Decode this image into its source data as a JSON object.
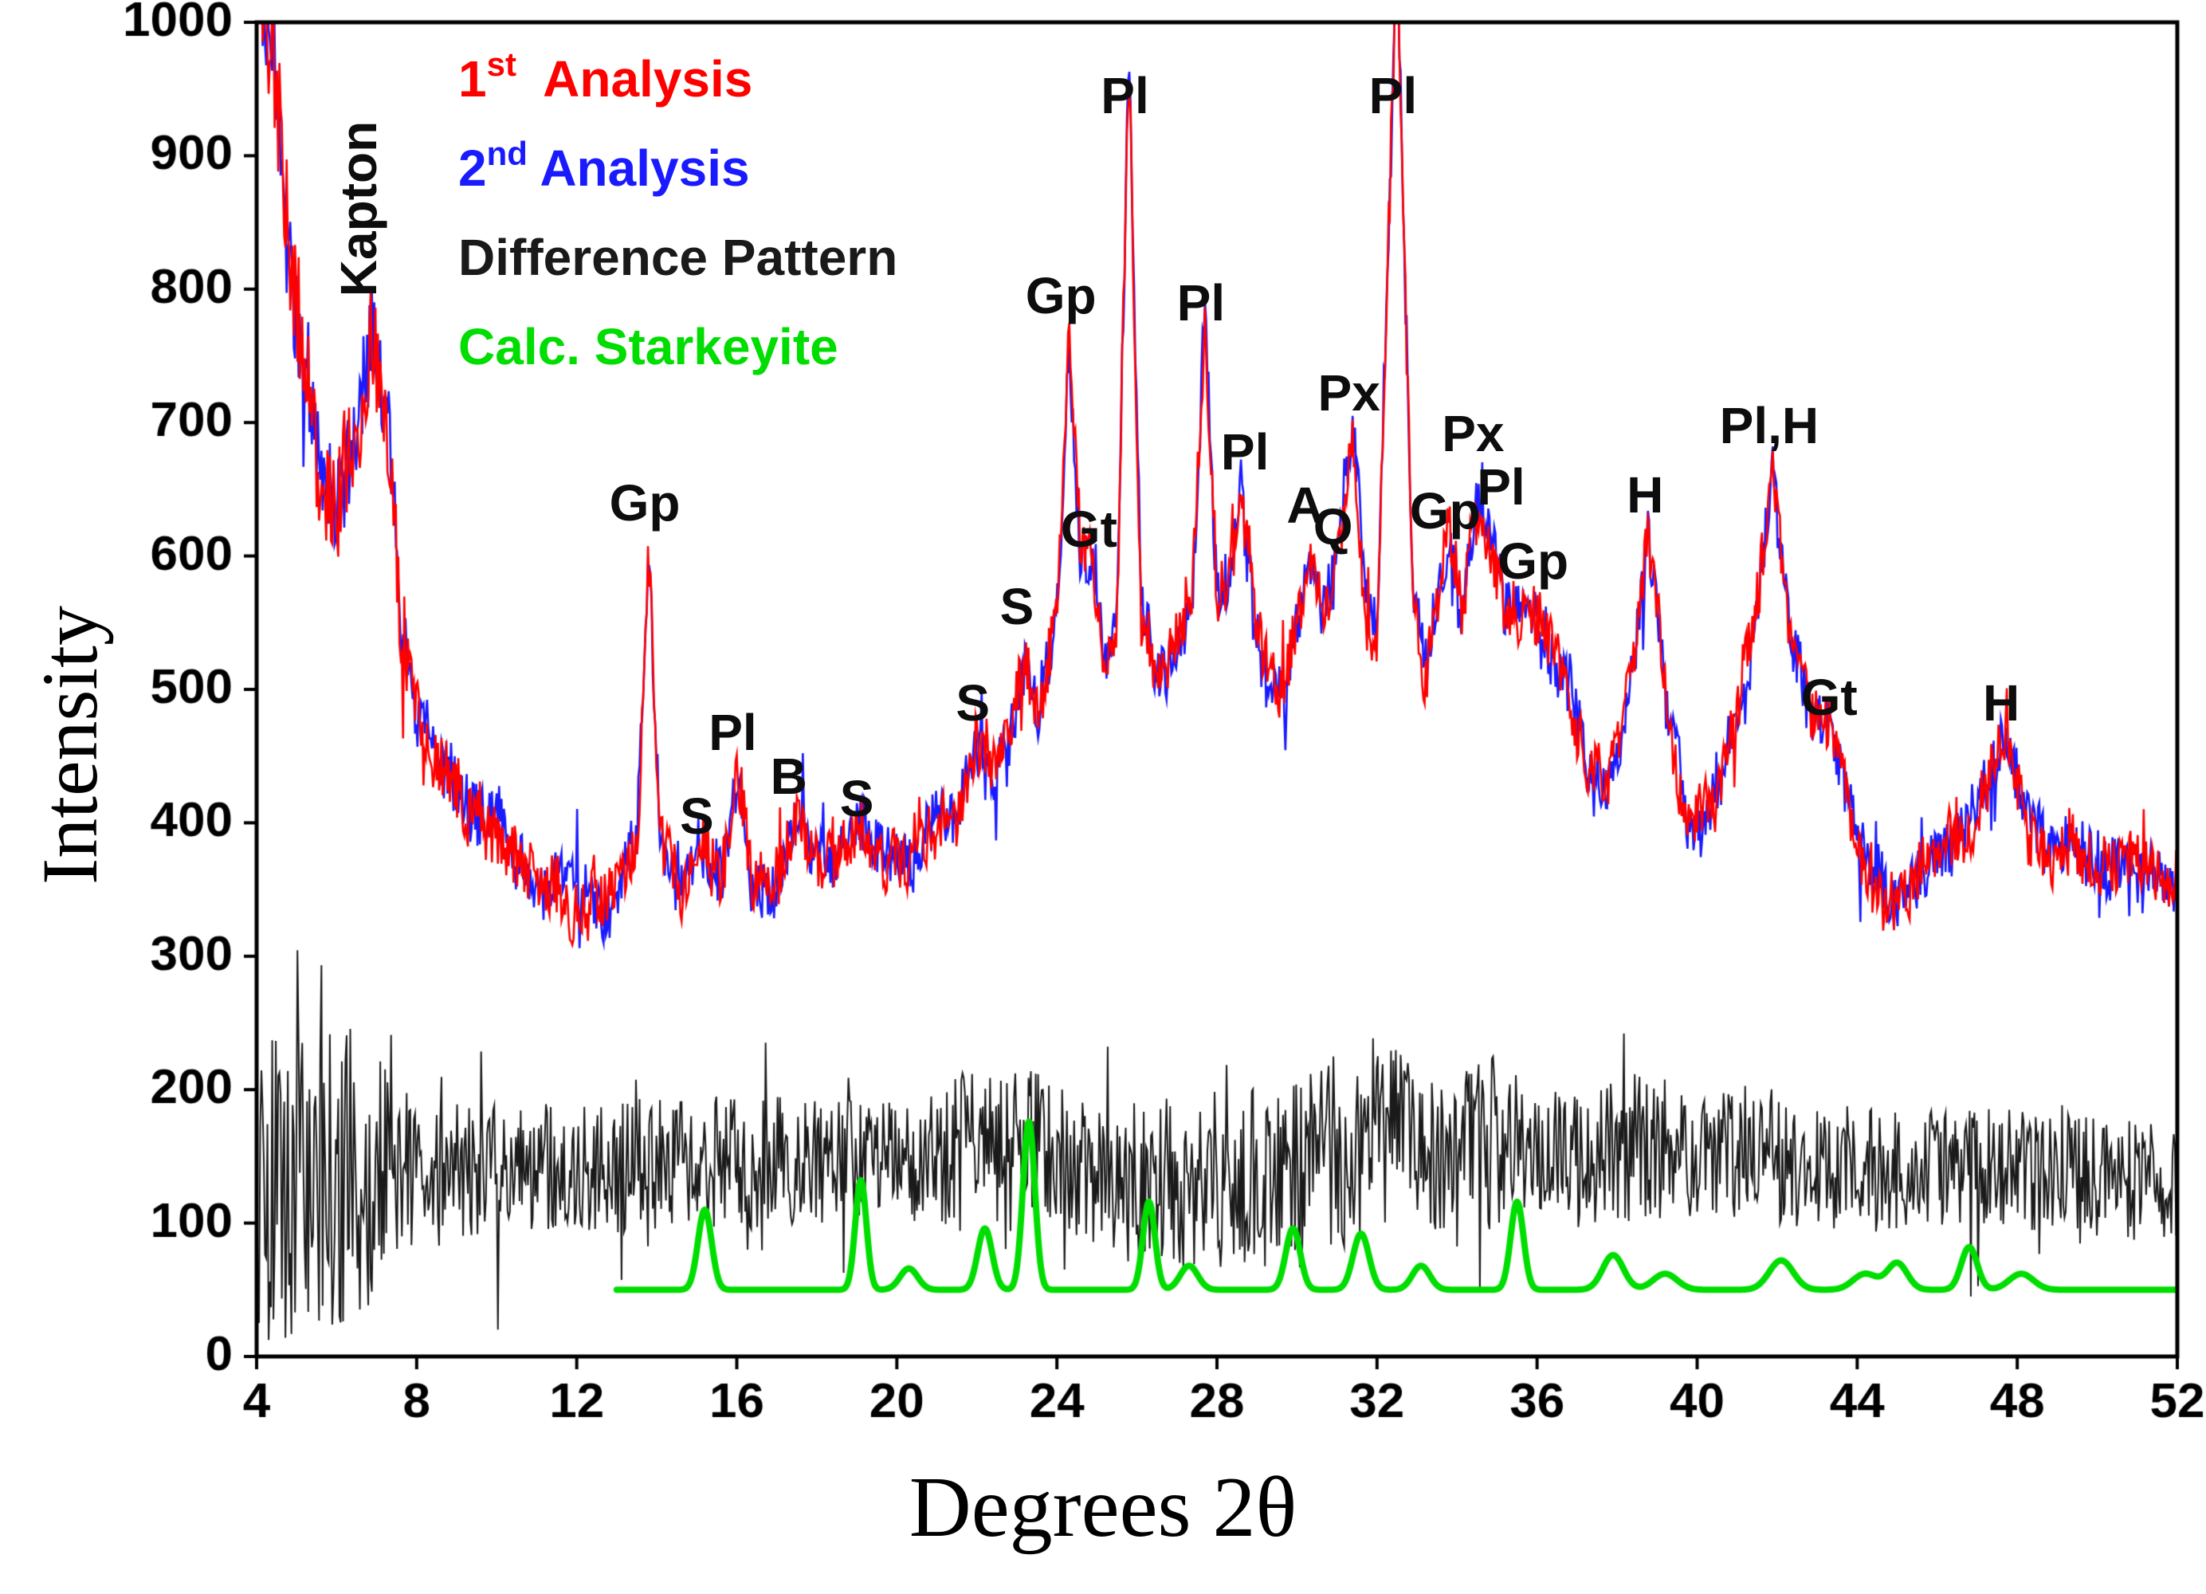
{
  "chart_data": {
    "type": "line",
    "title": "",
    "xlabel": "Degrees 2θ",
    "ylabel": "Intensity",
    "xlim": [
      4,
      52
    ],
    "ylim": [
      0,
      1000
    ],
    "x_ticks": [
      4,
      8,
      12,
      16,
      20,
      24,
      28,
      32,
      36,
      40,
      44,
      48,
      52
    ],
    "y_ticks": [
      0,
      100,
      200,
      300,
      400,
      500,
      600,
      700,
      800,
      900,
      1000
    ],
    "grid": false,
    "legend_position": "top-left-inside",
    "legend": [
      {
        "num": "1",
        "sup": "st",
        "rest": "  Analysis",
        "color": "#ff0000"
      },
      {
        "num": "2",
        "sup": "nd",
        "rest": " Analysis",
        "color": "#1a1aff"
      },
      {
        "num": "",
        "sup": "",
        "rest": "Difference Pattern",
        "color": "#1a1a1a"
      },
      {
        "num": "",
        "sup": "",
        "rest": "Calc. Starkeyite",
        "color": "#00dd00"
      }
    ],
    "series": [
      {
        "name": "1st Analysis",
        "color": "#ff0000",
        "type": "noisy-envelope",
        "seed": 11,
        "step": 0.03,
        "noise_env": [
          [
            4,
            50
          ],
          [
            7.2,
            40
          ],
          [
            7.8,
            26
          ],
          [
            13,
            22
          ],
          [
            52,
            22
          ]
        ],
        "envelope": [
          [
            4,
            1050
          ],
          [
            4.4,
            980
          ],
          [
            4.8,
            840
          ],
          [
            5.2,
            740
          ],
          [
            5.6,
            660
          ],
          [
            6.0,
            640
          ],
          [
            6.4,
            680
          ],
          [
            6.9,
            765
          ],
          [
            7.3,
            690
          ],
          [
            7.6,
            560
          ],
          [
            8,
            490
          ],
          [
            8.6,
            440
          ],
          [
            9.4,
            415
          ],
          [
            10.2,
            385
          ],
          [
            11,
            355
          ],
          [
            12,
            340
          ],
          [
            13,
            345
          ],
          [
            13.5,
            380
          ],
          [
            13.8,
            600
          ],
          [
            14.1,
            380
          ],
          [
            14.6,
            345
          ],
          [
            15.2,
            385
          ],
          [
            15.6,
            350
          ],
          [
            16,
            440
          ],
          [
            16.4,
            350
          ],
          [
            17,
            360
          ],
          [
            17.5,
            405
          ],
          [
            18,
            365
          ],
          [
            18.6,
            375
          ],
          [
            19.1,
            400
          ],
          [
            19.6,
            370
          ],
          [
            20.2,
            375
          ],
          [
            21,
            390
          ],
          [
            21.6,
            420
          ],
          [
            22,
            460
          ],
          [
            22.4,
            440
          ],
          [
            22.8,
            460
          ],
          [
            23.2,
            530
          ],
          [
            23.6,
            475
          ],
          [
            24,
            560
          ],
          [
            24.3,
            760
          ],
          [
            24.6,
            600
          ],
          [
            24.9,
            590
          ],
          [
            25.2,
            520
          ],
          [
            25.5,
            540
          ],
          [
            25.8,
            980
          ],
          [
            26.1,
            560
          ],
          [
            26.5,
            510
          ],
          [
            27,
            530
          ],
          [
            27.4,
            560
          ],
          [
            27.7,
            780
          ],
          [
            28,
            570
          ],
          [
            28.3,
            580
          ],
          [
            28.6,
            650
          ],
          [
            28.9,
            560
          ],
          [
            29.3,
            510
          ],
          [
            29.7,
            500
          ],
          [
            30.3,
            590
          ],
          [
            30.7,
            560
          ],
          [
            31,
            600
          ],
          [
            31.4,
            700
          ],
          [
            31.7,
            560
          ],
          [
            32,
            540
          ],
          [
            32.5,
            1060
          ],
          [
            32.9,
            560
          ],
          [
            33.2,
            520
          ],
          [
            33.8,
            620
          ],
          [
            34.1,
            560
          ],
          [
            34.5,
            630
          ],
          [
            34.9,
            600
          ],
          [
            35.2,
            560
          ],
          [
            35.8,
            560
          ],
          [
            36.3,
            530
          ],
          [
            36.8,
            500
          ],
          [
            37.3,
            440
          ],
          [
            37.8,
            430
          ],
          [
            38.3,
            500
          ],
          [
            38.8,
            620
          ],
          [
            39.3,
            480
          ],
          [
            39.8,
            400
          ],
          [
            40.4,
            420
          ],
          [
            41,
            470
          ],
          [
            41.5,
            560
          ],
          [
            41.9,
            660
          ],
          [
            42.3,
            540
          ],
          [
            42.8,
            490
          ],
          [
            43.3,
            470
          ],
          [
            43.8,
            410
          ],
          [
            44.3,
            360
          ],
          [
            44.8,
            340
          ],
          [
            45.4,
            360
          ],
          [
            46,
            375
          ],
          [
            46.6,
            390
          ],
          [
            47.2,
            420
          ],
          [
            47.7,
            470
          ],
          [
            48.2,
            400
          ],
          [
            48.8,
            370
          ],
          [
            49.5,
            380
          ],
          [
            50.2,
            370
          ],
          [
            51,
            365
          ],
          [
            52,
            350
          ]
        ]
      },
      {
        "name": "2nd Analysis",
        "color": "#1a1aff",
        "type": "noisy-envelope",
        "seed": 77,
        "step": 0.03,
        "noise_env": [
          [
            4,
            50
          ],
          [
            7.2,
            40
          ],
          [
            7.8,
            26
          ],
          [
            13,
            22
          ],
          [
            52,
            22
          ]
        ],
        "envelope_from": "1st Analysis"
      },
      {
        "name": "Difference Pattern",
        "color": "#1a1a1a",
        "type": "noisy-band",
        "seed": 5,
        "step": 0.03,
        "mean": [
          [
            4,
            120
          ],
          [
            5,
            130
          ],
          [
            6,
            130
          ],
          [
            7,
            140
          ],
          [
            10,
            140
          ],
          [
            15,
            145
          ],
          [
            20,
            145
          ],
          [
            23.5,
            160
          ],
          [
            25,
            130
          ],
          [
            27,
            130
          ],
          [
            30,
            140
          ],
          [
            32.3,
            170
          ],
          [
            33.5,
            150
          ],
          [
            35.4,
            165
          ],
          [
            37,
            150
          ],
          [
            39,
            155
          ],
          [
            41,
            150
          ],
          [
            44,
            140
          ],
          [
            48,
            140
          ],
          [
            52,
            130
          ]
        ],
        "amp": [
          [
            4,
            115
          ],
          [
            6.8,
            115
          ],
          [
            7.4,
            60
          ],
          [
            12,
            50
          ],
          [
            20,
            50
          ],
          [
            23,
            65
          ],
          [
            24,
            55
          ],
          [
            31.8,
            80
          ],
          [
            33,
            55
          ],
          [
            35,
            70
          ],
          [
            36,
            50
          ],
          [
            39,
            60
          ],
          [
            40,
            48
          ],
          [
            52,
            45
          ]
        ]
      },
      {
        "name": "Calc. Starkeyite",
        "color": "#00dd00",
        "type": "peaks",
        "x_start": 13.0,
        "x_end": 52,
        "baseline": 50,
        "line_width": 8,
        "peaks": [
          [
            15.2,
            60,
            0.17
          ],
          [
            19.1,
            82,
            0.14
          ],
          [
            20.3,
            16,
            0.22
          ],
          [
            22.2,
            46,
            0.18
          ],
          [
            23.3,
            126,
            0.15
          ],
          [
            26.3,
            66,
            0.15
          ],
          [
            27.3,
            18,
            0.22
          ],
          [
            29.9,
            46,
            0.18
          ],
          [
            31.6,
            42,
            0.2
          ],
          [
            33.1,
            18,
            0.22
          ],
          [
            35.5,
            66,
            0.16
          ],
          [
            37.9,
            26,
            0.26
          ],
          [
            39.2,
            12,
            0.3
          ],
          [
            42.1,
            22,
            0.3
          ],
          [
            44.2,
            12,
            0.3
          ],
          [
            45.0,
            20,
            0.25
          ],
          [
            46.8,
            32,
            0.2
          ],
          [
            48.1,
            12,
            0.3
          ]
        ]
      }
    ],
    "annotations": [
      {
        "text": "Kapton",
        "x": 6.55,
        "y": 860,
        "rotate": -90
      },
      {
        "text": "Gp",
        "x": 13.7,
        "y": 640
      },
      {
        "text": "S",
        "x": 15.0,
        "y": 405
      },
      {
        "text": "Pl",
        "x": 15.9,
        "y": 468
      },
      {
        "text": "B",
        "x": 17.3,
        "y": 435
      },
      {
        "text": "S",
        "x": 19.0,
        "y": 418
      },
      {
        "text": "S",
        "x": 21.9,
        "y": 490
      },
      {
        "text": "S",
        "x": 23.0,
        "y": 562
      },
      {
        "text": "Gp",
        "x": 24.1,
        "y": 795
      },
      {
        "text": "Gt",
        "x": 24.8,
        "y": 620
      },
      {
        "text": "Pl",
        "x": 25.7,
        "y": 945
      },
      {
        "text": "Pl",
        "x": 27.6,
        "y": 790
      },
      {
        "text": "Pl",
        "x": 28.7,
        "y": 678
      },
      {
        "text": "A",
        "x": 30.2,
        "y": 638
      },
      {
        "text": "Q",
        "x": 30.9,
        "y": 622
      },
      {
        "text": "Px",
        "x": 31.3,
        "y": 722
      },
      {
        "text": "Pl",
        "x": 32.4,
        "y": 945
      },
      {
        "text": "Gp",
        "x": 33.7,
        "y": 634
      },
      {
        "text": "Px",
        "x": 34.4,
        "y": 692
      },
      {
        "text": "Pl",
        "x": 35.1,
        "y": 652
      },
      {
        "text": "Gp",
        "x": 35.9,
        "y": 596
      },
      {
        "text": "H",
        "x": 38.7,
        "y": 646
      },
      {
        "text": "Pl,H",
        "x": 41.8,
        "y": 698
      },
      {
        "text": "Gt",
        "x": 43.3,
        "y": 494
      },
      {
        "text": "H",
        "x": 47.6,
        "y": 490
      }
    ]
  }
}
